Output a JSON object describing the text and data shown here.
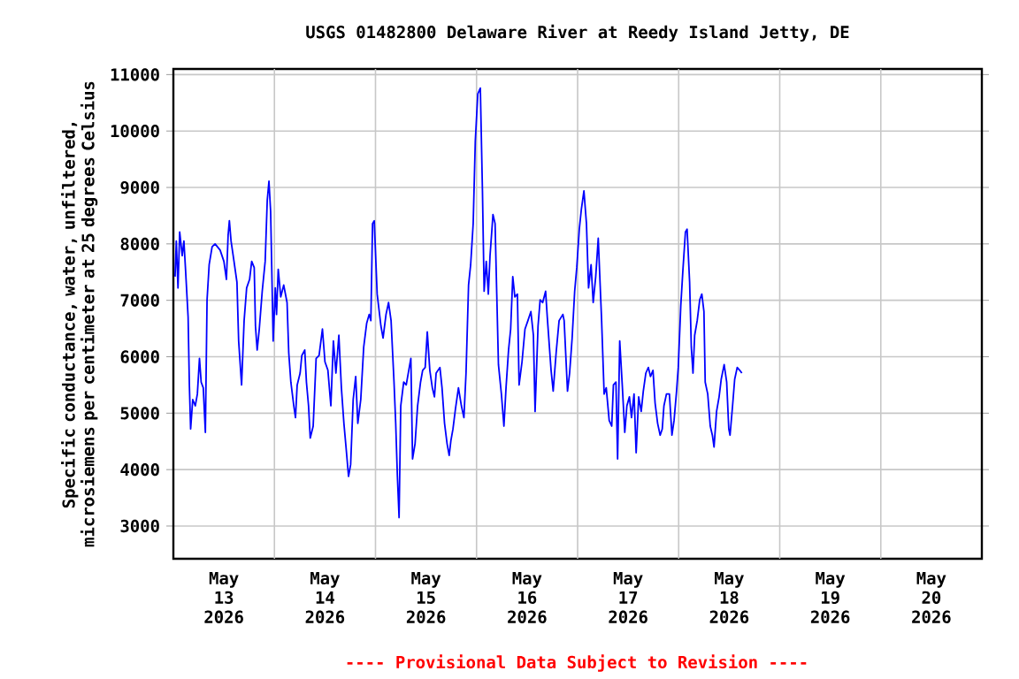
{
  "chart_data": {
    "type": "line",
    "title": "USGS 01482800 Delaware River at Reedy Island Jetty, DE",
    "ylabel": "Specific conductance, water, unfiltered, microsiemens per centimeter at 25 degrees Celsius",
    "annotations": [
      "---- Provisional Data Subject to Revision ----"
    ],
    "xlim": [
      "2026-05-13",
      "2026-05-21"
    ],
    "xticks": [
      {
        "value": "2026-05-13T12:00",
        "label": "May 13 2026"
      },
      {
        "value": "2026-05-14T12:00",
        "label": "May 14 2026"
      },
      {
        "value": "2026-05-15T12:00",
        "label": "May 15 2026"
      },
      {
        "value": "2026-05-16T12:00",
        "label": "May 16 2026"
      },
      {
        "value": "2026-05-17T12:00",
        "label": "May 17 2026"
      },
      {
        "value": "2026-05-18T12:00",
        "label": "May 18 2026"
      },
      {
        "value": "2026-05-19T12:00",
        "label": "May 19 2026"
      },
      {
        "value": "2026-05-20T12:00",
        "label": "May 20 2026"
      },
      {
        "value": "2026-05-14",
        "label": null
      },
      {
        "value": "2026-05-15",
        "label": null
      },
      {
        "value": "2026-05-16",
        "label": null
      },
      {
        "value": "2026-05-17",
        "label": null
      },
      {
        "value": "2026-05-18",
        "label": null
      },
      {
        "value": "2026-05-19",
        "label": null
      },
      {
        "value": "2026-05-20",
        "label": null
      }
    ],
    "ylim": [
      2420,
      11100
    ],
    "yticks": [
      3000,
      4000,
      5000,
      6000,
      7000,
      8000,
      9000,
      10000,
      11000
    ],
    "grid": true,
    "series": [
      {
        "color": "#0000ff",
        "x": [
          "2026-05-13T00:24",
          "2026-05-13T00:42",
          "2026-05-13T01:06",
          "2026-05-13T01:30",
          "2026-05-13T02:06",
          "2026-05-13T02:30",
          "2026-05-13T02:54",
          "2026-05-13T03:30",
          "2026-05-13T03:48",
          "2026-05-13T04:06",
          "2026-05-13T04:36",
          "2026-05-13T05:12",
          "2026-05-13T05:42",
          "2026-05-13T06:12",
          "2026-05-13T06:36",
          "2026-05-13T07:06",
          "2026-05-13T07:36",
          "2026-05-13T08:00",
          "2026-05-13T08:30",
          "2026-05-13T09:12",
          "2026-05-13T09:54",
          "2026-05-13T11:06",
          "2026-05-13T12:00",
          "2026-05-13T12:36",
          "2026-05-13T13:00",
          "2026-05-13T13:18",
          "2026-05-13T13:42",
          "2026-05-13T14:24",
          "2026-05-13T15:06",
          "2026-05-13T15:30",
          "2026-05-13T16:12",
          "2026-05-13T16:48",
          "2026-05-13T17:24",
          "2026-05-13T18:06",
          "2026-05-13T18:36",
          "2026-05-13T19:12",
          "2026-05-13T19:30",
          "2026-05-13T19:54",
          "2026-05-13T20:24",
          "2026-05-13T21:06",
          "2026-05-13T21:48",
          "2026-05-13T22:18",
          "2026-05-13T22:42",
          "2026-05-13T23:06",
          "2026-05-13T23:42",
          "2026-05-14T00:12",
          "2026-05-14T00:30",
          "2026-05-14T00:54",
          "2026-05-14T01:30",
          "2026-05-14T02:12",
          "2026-05-14T03:00",
          "2026-05-14T03:24",
          "2026-05-14T03:54",
          "2026-05-14T04:36",
          "2026-05-14T05:00",
          "2026-05-14T05:24",
          "2026-05-14T06:06",
          "2026-05-14T06:30",
          "2026-05-14T07:12",
          "2026-05-14T07:36",
          "2026-05-14T08:06",
          "2026-05-14T08:30",
          "2026-05-14T09:12",
          "2026-05-14T09:54",
          "2026-05-14T10:36",
          "2026-05-14T11:24",
          "2026-05-14T12:00",
          "2026-05-14T12:42",
          "2026-05-14T13:24",
          "2026-05-14T14:00",
          "2026-05-14T14:36",
          "2026-05-14T15:18",
          "2026-05-14T15:54",
          "2026-05-14T16:30",
          "2026-05-14T17:00",
          "2026-05-14T17:36",
          "2026-05-14T18:06",
          "2026-05-14T18:42",
          "2026-05-14T19:18",
          "2026-05-14T19:48",
          "2026-05-14T20:30",
          "2026-05-14T21:12",
          "2026-05-14T21:54",
          "2026-05-14T22:30",
          "2026-05-14T22:54",
          "2026-05-14T23:18",
          "2026-05-14T23:42",
          "2026-05-15T00:24",
          "2026-05-15T01:18",
          "2026-05-15T01:48",
          "2026-05-15T02:30",
          "2026-05-15T03:06",
          "2026-05-15T03:42",
          "2026-05-15T04:24",
          "2026-05-15T04:48",
          "2026-05-15T05:12",
          "2026-05-15T05:36",
          "2026-05-15T06:00",
          "2026-05-15T06:42",
          "2026-05-15T07:18",
          "2026-05-15T07:54",
          "2026-05-15T08:24",
          "2026-05-15T08:48",
          "2026-05-15T09:24",
          "2026-05-15T10:00",
          "2026-05-15T10:42",
          "2026-05-15T11:12",
          "2026-05-15T11:48",
          "2026-05-15T12:18",
          "2026-05-15T12:54",
          "2026-05-15T13:30",
          "2026-05-15T14:00",
          "2026-05-15T14:24",
          "2026-05-15T15:18",
          "2026-05-15T15:48",
          "2026-05-15T16:24",
          "2026-05-15T17:00",
          "2026-05-15T17:30",
          "2026-05-15T17:54",
          "2026-05-15T18:24",
          "2026-05-15T19:00",
          "2026-05-15T19:42",
          "2026-05-15T20:24",
          "2026-05-15T21:00",
          "2026-05-15T21:30",
          "2026-05-15T22:06",
          "2026-05-15T22:36",
          "2026-05-15T23:12",
          "2026-05-15T23:42",
          "2026-05-16T00:18",
          "2026-05-16T00:54",
          "2026-05-16T01:24",
          "2026-05-16T01:48",
          "2026-05-16T02:18",
          "2026-05-16T02:48",
          "2026-05-16T03:12",
          "2026-05-16T03:54",
          "2026-05-16T04:24",
          "2026-05-16T04:48",
          "2026-05-16T05:12",
          "2026-05-16T05:54",
          "2026-05-16T06:30",
          "2026-05-16T07:00",
          "2026-05-16T07:36",
          "2026-05-16T08:06",
          "2026-05-16T08:36",
          "2026-05-16T09:06",
          "2026-05-16T09:42",
          "2026-05-16T10:06",
          "2026-05-16T10:48",
          "2026-05-16T11:30",
          "2026-05-16T12:12",
          "2026-05-16T12:54",
          "2026-05-16T13:30",
          "2026-05-16T13:54",
          "2026-05-16T14:36",
          "2026-05-16T15:06",
          "2026-05-16T15:42",
          "2026-05-16T16:24",
          "2026-05-16T16:48",
          "2026-05-16T17:42",
          "2026-05-16T18:12",
          "2026-05-16T18:54",
          "2026-05-16T19:36",
          "2026-05-16T20:30",
          "2026-05-16T20:48",
          "2026-05-16T21:36",
          "2026-05-16T22:06",
          "2026-05-16T22:42",
          "2026-05-16T23:18",
          "2026-05-16T23:48",
          "2026-05-17T00:24",
          "2026-05-17T00:54",
          "2026-05-17T01:30",
          "2026-05-17T02:06",
          "2026-05-17T02:36",
          "2026-05-17T03:12",
          "2026-05-17T03:42",
          "2026-05-17T04:18",
          "2026-05-17T04:54",
          "2026-05-17T05:18",
          "2026-05-17T05:42",
          "2026-05-17T06:18",
          "2026-05-17T06:48",
          "2026-05-17T07:30",
          "2026-05-17T08:06",
          "2026-05-17T08:30",
          "2026-05-17T09:06",
          "2026-05-17T09:30",
          "2026-05-17T10:00",
          "2026-05-17T10:36",
          "2026-05-17T11:12",
          "2026-05-17T11:42",
          "2026-05-17T12:18",
          "2026-05-17T12:48",
          "2026-05-17T13:24",
          "2026-05-17T13:54",
          "2026-05-17T14:30",
          "2026-05-17T15:06",
          "2026-05-17T15:36",
          "2026-05-17T16:12",
          "2026-05-17T16:48",
          "2026-05-17T17:18",
          "2026-05-17T17:54",
          "2026-05-17T18:24",
          "2026-05-17T19:00",
          "2026-05-17T19:36",
          "2026-05-17T20:06",
          "2026-05-17T20:30",
          "2026-05-17T21:06",
          "2026-05-17T21:48",
          "2026-05-17T22:24",
          "2026-05-17T22:54",
          "2026-05-17T23:30",
          "2026-05-17T23:54",
          "2026-05-18T00:30",
          "2026-05-18T01:00",
          "2026-05-18T01:36",
          "2026-05-18T02:00",
          "2026-05-18T02:36",
          "2026-05-18T03:00",
          "2026-05-18T03:24",
          "2026-05-18T03:48",
          "2026-05-18T04:24",
          "2026-05-18T05:00",
          "2026-05-18T05:30",
          "2026-05-18T06:00",
          "2026-05-18T06:18",
          "2026-05-18T06:54",
          "2026-05-18T07:30",
          "2026-05-18T08:00",
          "2026-05-18T08:24",
          "2026-05-18T09:00",
          "2026-05-18T09:36",
          "2026-05-18T10:06",
          "2026-05-18T10:48",
          "2026-05-18T11:24",
          "2026-05-18T11:54",
          "2026-05-18T12:12",
          "2026-05-18T12:48",
          "2026-05-18T13:18",
          "2026-05-18T13:54",
          "2026-05-18T14:30",
          "2026-05-18T15:00"
        ],
        "values": [
          7420,
          8050,
          7220,
          8210,
          7790,
          8050,
          7530,
          6700,
          5500,
          4720,
          5240,
          5130,
          5340,
          5970,
          5550,
          5450,
          4660,
          7010,
          7630,
          7950,
          8000,
          7890,
          7690,
          7370,
          8150,
          8410,
          8050,
          7690,
          7320,
          6280,
          5500,
          6640,
          7220,
          7370,
          7690,
          7580,
          6540,
          6120,
          6490,
          7160,
          7690,
          8780,
          9110,
          8570,
          6280,
          7220,
          6750,
          7550,
          7060,
          7270,
          6960,
          6070,
          5550,
          5130,
          4920,
          5500,
          5710,
          6020,
          6120,
          5550,
          5130,
          4560,
          4770,
          5970,
          6020,
          6490,
          5910,
          5760,
          5130,
          6280,
          5710,
          6380,
          5450,
          4820,
          4400,
          3880,
          4090,
          5240,
          5650,
          4820,
          5240,
          6170,
          6590,
          6750,
          6640,
          8360,
          8410,
          7110,
          6540,
          6330,
          6750,
          6960,
          6640,
          5550,
          4820,
          3880,
          3150,
          5130,
          5550,
          5500,
          5760,
          5970,
          4190,
          4460,
          5130,
          5550,
          5760,
          5810,
          6440,
          5760,
          5450,
          5290,
          5710,
          5810,
          5450,
          4820,
          4460,
          4250,
          4510,
          4720,
          5080,
          5450,
          5130,
          4920,
          5710,
          7270,
          7630,
          8360,
          9820,
          10660,
          10760,
          8940,
          7160,
          7690,
          7110,
          7790,
          8520,
          8360,
          7110,
          5860,
          5340,
          4770,
          5450,
          6120,
          6490,
          7420,
          7060,
          7110,
          5500,
          5910,
          6490,
          6640,
          6800,
          6380,
          5030,
          6540,
          7010,
          6960,
          7160,
          6700,
          5760,
          5390,
          6070,
          6640,
          6750,
          6640,
          5390,
          5710,
          6330,
          7160,
          7580,
          8260,
          8620,
          8940,
          8360,
          7220,
          7630,
          6960,
          7420,
          8100,
          7370,
          6640,
          5340,
          5450,
          4870,
          4770,
          5500,
          5550,
          4190,
          6280,
          5500,
          4660,
          5130,
          5290,
          4920,
          5340,
          4300,
          5290,
          5030,
          5390,
          5710,
          5810,
          5650,
          5760,
          5180,
          4820,
          4610,
          4720,
          5130,
          5340,
          5340,
          4610,
          4870,
          5390,
          5810,
          6900,
          7530,
          8210,
          8260,
          7320,
          6170,
          5710,
          6380,
          6640,
          7010,
          7110,
          6800,
          5550,
          5340,
          4770,
          4610,
          4400,
          5030,
          5290,
          5600,
          5860,
          5550,
          4720,
          4610,
          5130,
          5600,
          5810,
          5760,
          5710
        ]
      }
    ]
  }
}
